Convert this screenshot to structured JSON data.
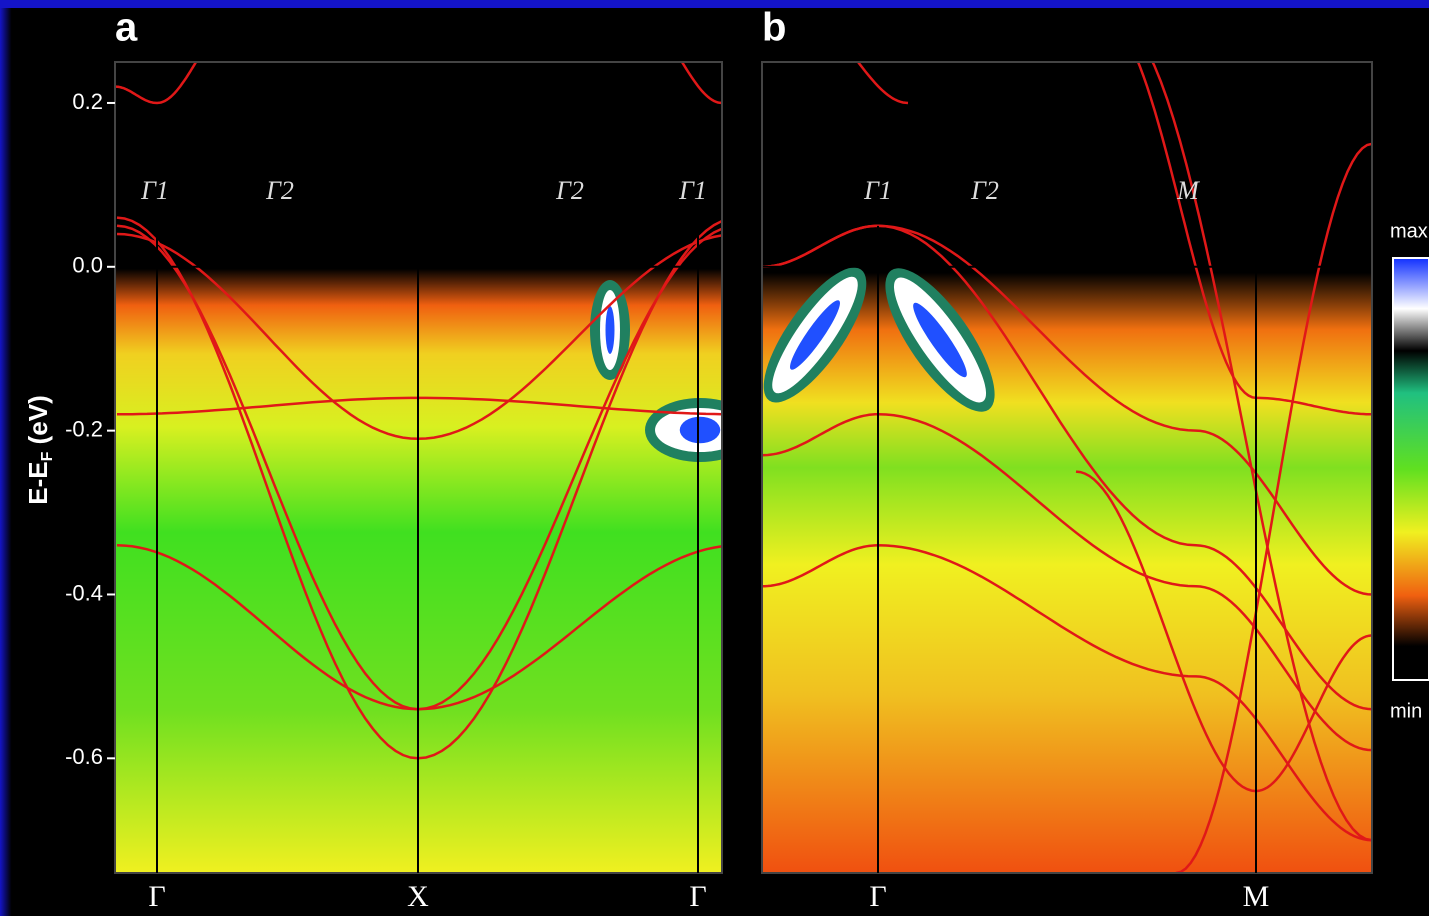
{
  "chart_data": [
    {
      "type": "band",
      "panel": "a",
      "categories": [
        "Γ",
        "X",
        "Γ"
      ],
      "ylim": [
        -0.74,
        0.25
      ],
      "yticks": [
        0.2,
        {
          "value": 0,
          "label": "0.0"
        },
        -0.2,
        -0.4,
        -0.6
      ],
      "ylabel": "E-E",
      "ylabel_sub": "F",
      "ylabel_unit": " (eV)",
      "annotations": [
        "Γ1",
        "Γ2",
        "Γ2",
        "Γ1"
      ]
    },
    {
      "type": "band",
      "panel": "b",
      "categories": [
        "Γ",
        "M"
      ],
      "ylim": [
        -0.74,
        0.25
      ],
      "annotations": [
        "Γ1",
        "Γ2",
        "M"
      ]
    }
  ],
  "colorbar": {
    "max": "max",
    "min": "min"
  }
}
